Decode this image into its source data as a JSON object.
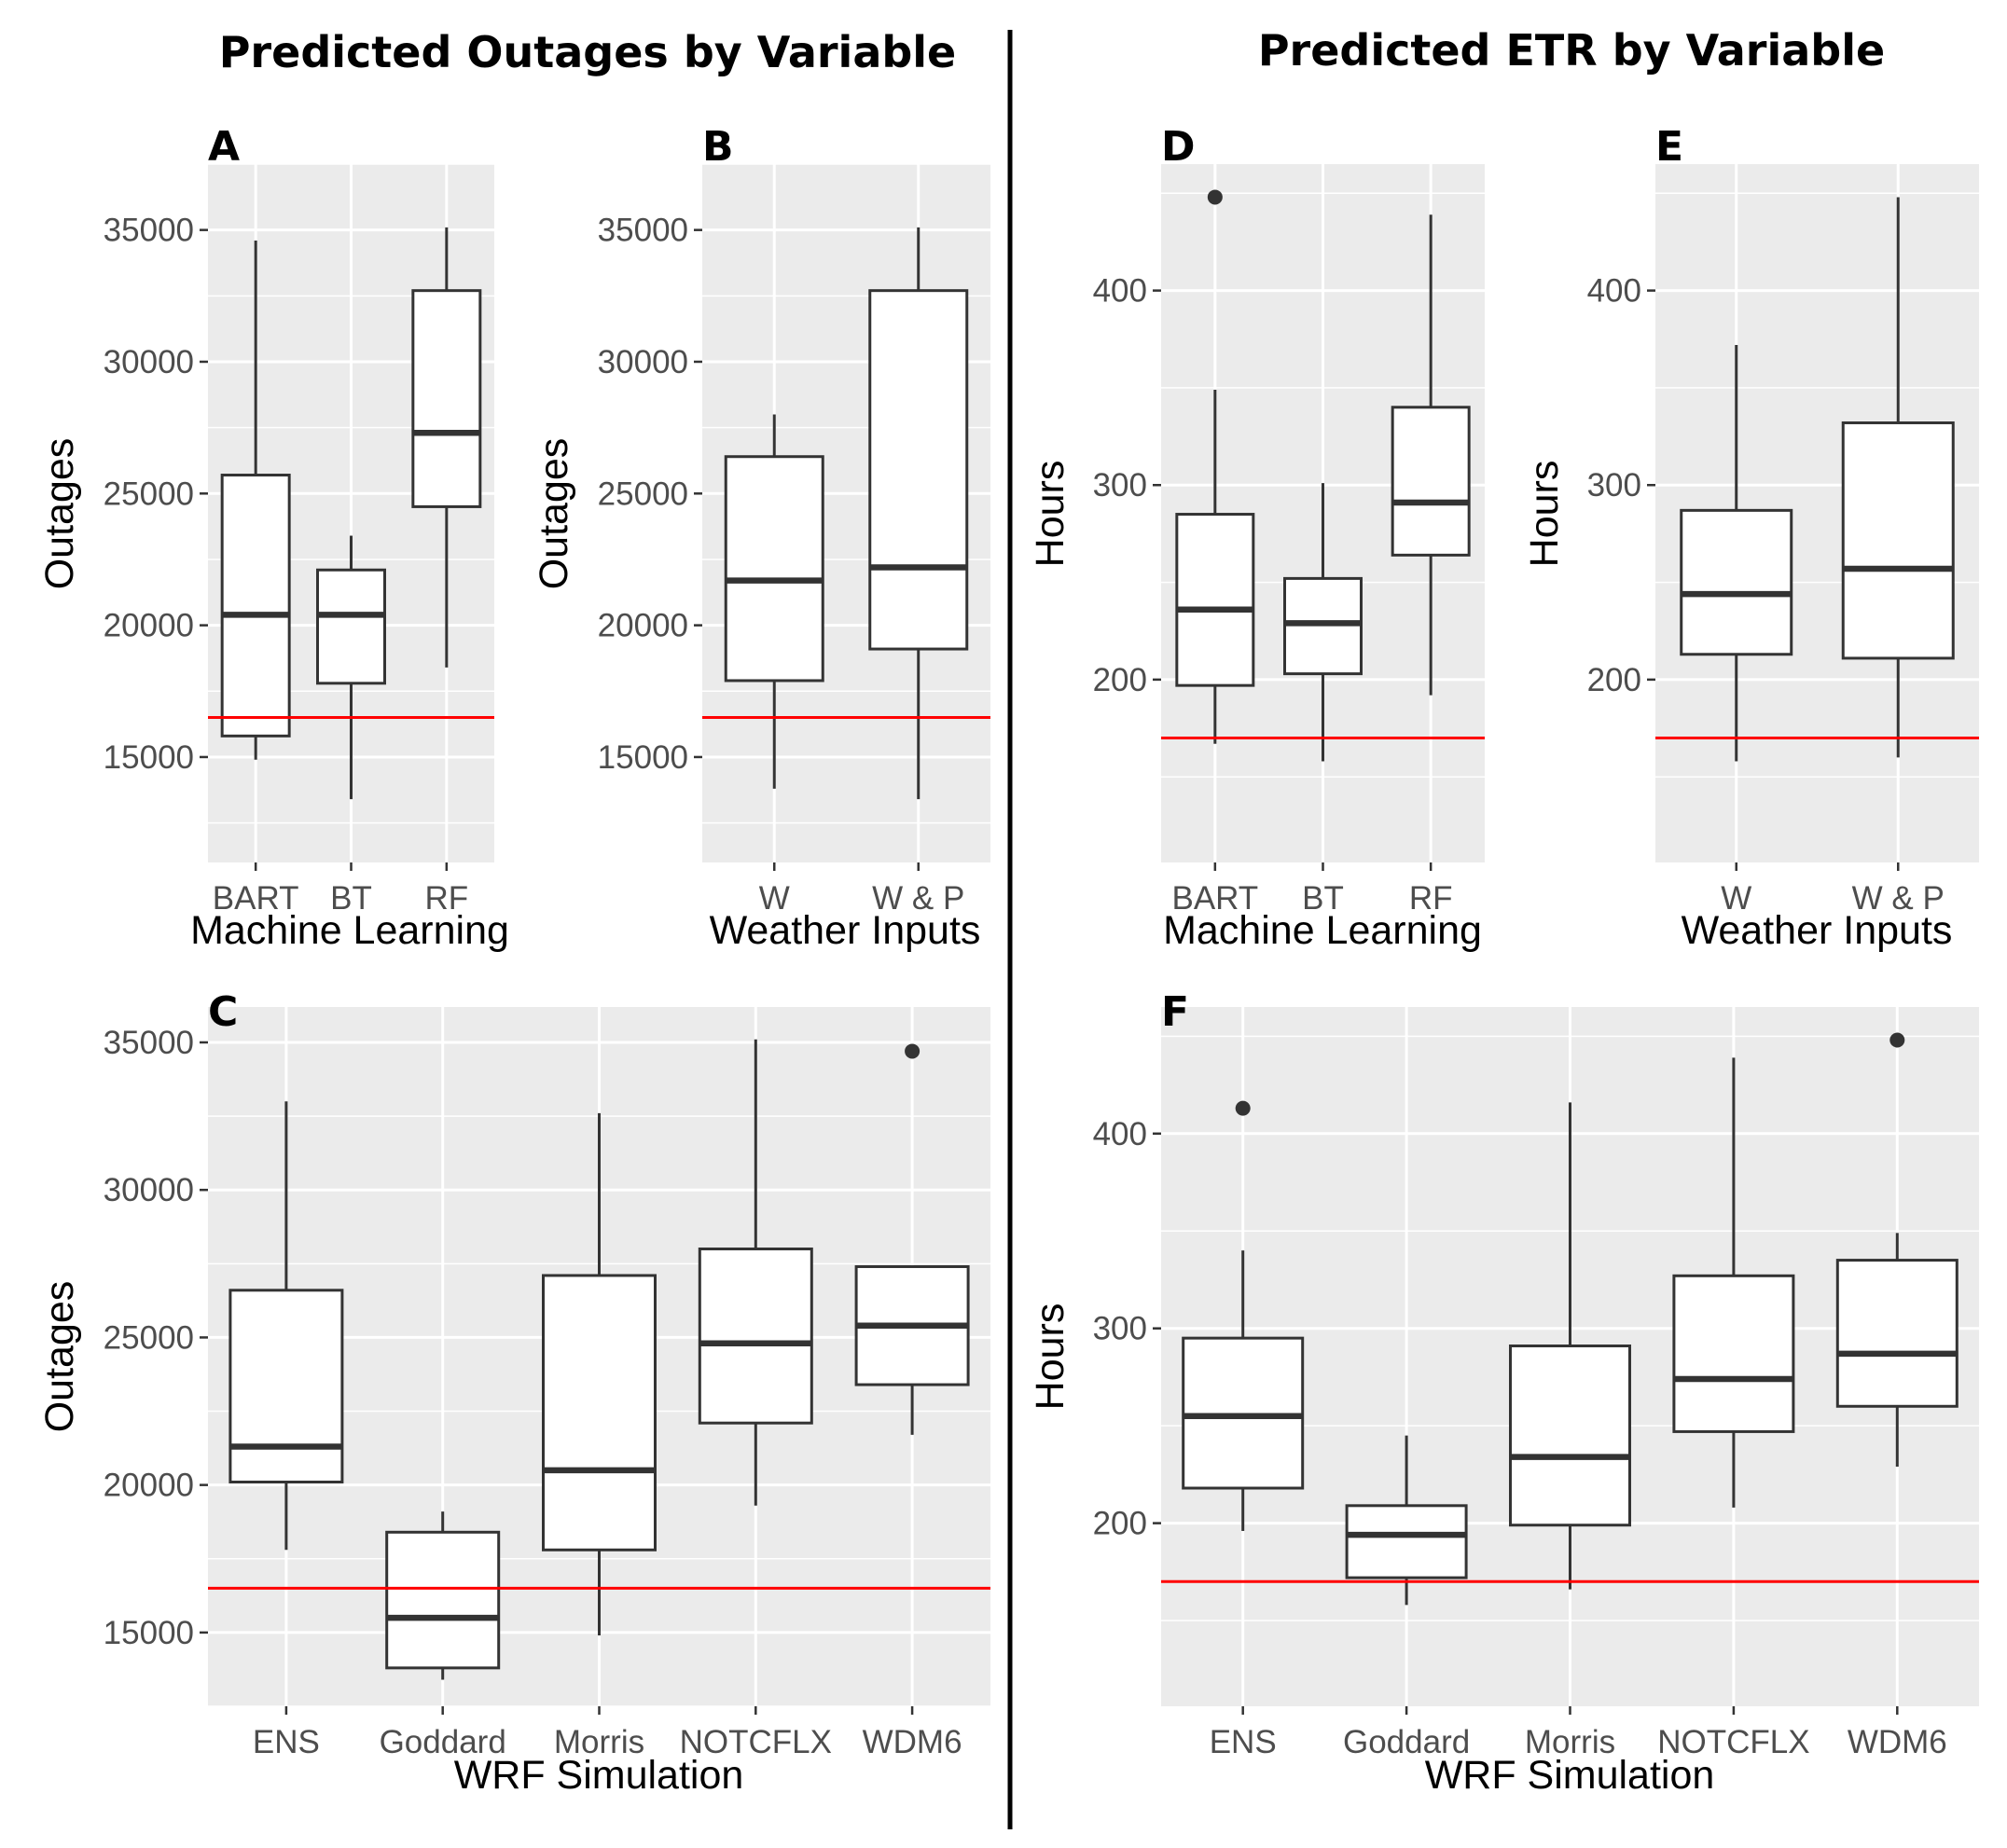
{
  "titles": {
    "left": "Predicted Outages by Variable",
    "right": "Predicted ETR by Variable"
  },
  "colors": {
    "panel_bg": "#ebebeb",
    "grid": "#ffffff",
    "box_stroke": "#333333",
    "reference_line": "#ff0000",
    "outlier": "#333333"
  },
  "chart_data": [
    {
      "panel": "A",
      "type": "boxplot",
      "xlabel": "Machine Learning",
      "ylabel": "Outages",
      "ylim": [
        11000,
        37500
      ],
      "yticks": [
        15000,
        20000,
        25000,
        30000,
        35000
      ],
      "reference_line": 16500,
      "categories": [
        "BART",
        "BT",
        "RF"
      ],
      "boxes": [
        {
          "min": 14900,
          "q1": 15800,
          "median": 20400,
          "q3": 25700,
          "max": 34600,
          "outliers": []
        },
        {
          "min": 13400,
          "q1": 17800,
          "median": 20400,
          "q3": 22100,
          "max": 23400,
          "outliers": []
        },
        {
          "min": 18400,
          "q1": 24500,
          "median": 27300,
          "q3": 32700,
          "max": 35100,
          "outliers": []
        }
      ]
    },
    {
      "panel": "B",
      "type": "boxplot",
      "xlabel": "Weather Inputs",
      "ylabel": "Outages",
      "ylim": [
        11000,
        37500
      ],
      "yticks": [
        15000,
        20000,
        25000,
        30000,
        35000
      ],
      "reference_line": 16500,
      "categories": [
        "W",
        "W & P"
      ],
      "boxes": [
        {
          "min": 13800,
          "q1": 17900,
          "median": 21700,
          "q3": 26400,
          "max": 28000,
          "outliers": []
        },
        {
          "min": 13400,
          "q1": 19100,
          "median": 22200,
          "q3": 32700,
          "max": 35100,
          "outliers": []
        }
      ]
    },
    {
      "panel": "C",
      "type": "boxplot",
      "xlabel": "WRF Simulation",
      "ylabel": "Outages",
      "ylim": [
        12500,
        36200
      ],
      "yticks": [
        15000,
        20000,
        25000,
        30000,
        35000
      ],
      "reference_line": 16500,
      "categories": [
        "ENS",
        "Goddard",
        "Morris",
        "NOTCFLX",
        "WDM6"
      ],
      "boxes": [
        {
          "min": 17800,
          "q1": 20100,
          "median": 21300,
          "q3": 26600,
          "max": 33000,
          "outliers": []
        },
        {
          "min": 13400,
          "q1": 13800,
          "median": 15500,
          "q3": 18400,
          "max": 19100,
          "outliers": []
        },
        {
          "min": 14900,
          "q1": 17800,
          "median": 20500,
          "q3": 27100,
          "max": 32600,
          "outliers": []
        },
        {
          "min": 19300,
          "q1": 22100,
          "median": 24800,
          "q3": 28000,
          "max": 35100,
          "outliers": []
        },
        {
          "min": 21700,
          "q1": 23400,
          "median": 25400,
          "q3": 27400,
          "max": 27400,
          "outliers": [
            34700
          ]
        }
      ]
    },
    {
      "panel": "D",
      "type": "boxplot",
      "xlabel": "Machine Learning",
      "ylabel": "Hours",
      "ylim": [
        106,
        465
      ],
      "yticks": [
        200,
        300,
        400
      ],
      "reference_line": 170,
      "categories": [
        "BART",
        "BT",
        "RF"
      ],
      "boxes": [
        {
          "min": 167,
          "q1": 197,
          "median": 236,
          "q3": 285,
          "max": 349,
          "outliers": [
            448
          ]
        },
        {
          "min": 158,
          "q1": 203,
          "median": 229,
          "q3": 252,
          "max": 301,
          "outliers": []
        },
        {
          "min": 192,
          "q1": 264,
          "median": 291,
          "q3": 340,
          "max": 439,
          "outliers": []
        }
      ]
    },
    {
      "panel": "E",
      "type": "boxplot",
      "xlabel": "Weather Inputs",
      "ylabel": "Hours",
      "ylim": [
        106,
        465
      ],
      "yticks": [
        200,
        300,
        400
      ],
      "reference_line": 170,
      "categories": [
        "W",
        "W & P"
      ],
      "boxes": [
        {
          "min": 158,
          "q1": 213,
          "median": 244,
          "q3": 287,
          "max": 372,
          "outliers": []
        },
        {
          "min": 160,
          "q1": 211,
          "median": 257,
          "q3": 332,
          "max": 448,
          "outliers": []
        }
      ]
    },
    {
      "panel": "F",
      "type": "boxplot",
      "xlabel": "WRF Simulation",
      "ylabel": "Hours",
      "ylim": [
        106,
        465
      ],
      "yticks": [
        200,
        300,
        400
      ],
      "reference_line": 170,
      "categories": [
        "ENS",
        "Goddard",
        "Morris",
        "NOTCFLX",
        "WDM6"
      ],
      "boxes": [
        {
          "min": 196,
          "q1": 218,
          "median": 255,
          "q3": 295,
          "max": 340,
          "outliers": [
            413
          ]
        },
        {
          "min": 158,
          "q1": 172,
          "median": 194,
          "q3": 209,
          "max": 245,
          "outliers": []
        },
        {
          "min": 166,
          "q1": 199,
          "median": 234,
          "q3": 291,
          "max": 416,
          "outliers": []
        },
        {
          "min": 208,
          "q1": 247,
          "median": 274,
          "q3": 327,
          "max": 439,
          "outliers": []
        },
        {
          "min": 229,
          "q1": 260,
          "median": 287,
          "q3": 335,
          "max": 349,
          "outliers": [
            448
          ]
        }
      ]
    }
  ]
}
